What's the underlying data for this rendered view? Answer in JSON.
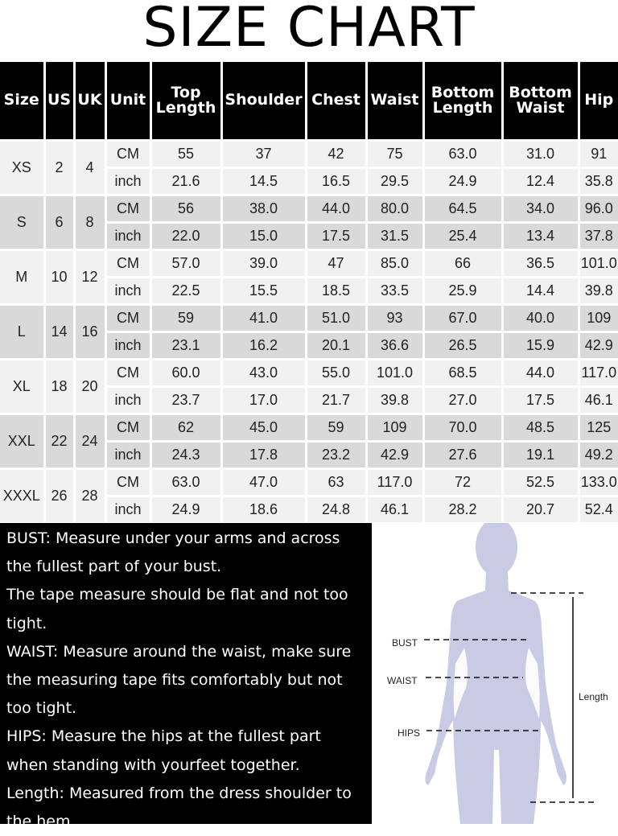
{
  "title": "SIZE CHART",
  "headers": [
    "Size",
    "US",
    "UK",
    "Unit",
    "Top\nLength",
    "Shoulder",
    "Chest",
    "Waist",
    "Bottom\nLength",
    "Bottom\nWaist",
    "Hip"
  ],
  "sizes": [
    {
      "size": "XS",
      "us": "2",
      "uk": "4",
      "cm": [
        "55",
        "37",
        "42",
        "75",
        "63.0",
        "31.0",
        "91"
      ],
      "inch": [
        "21.6",
        "14.5",
        "16.5",
        "29.5",
        "24.9",
        "12.4",
        "35.8"
      ]
    },
    {
      "size": "S",
      "us": "6",
      "uk": "8",
      "cm": [
        "56",
        "38.0",
        "44.0",
        "80.0",
        "64.5",
        "34.0",
        "96.0"
      ],
      "inch": [
        "22.0",
        "15.0",
        "17.5",
        "31.5",
        "25.4",
        "13.4",
        "37.8"
      ]
    },
    {
      "size": "M",
      "us": "10",
      "uk": "12",
      "cm": [
        "57.0",
        "39.0",
        "47",
        "85.0",
        "66",
        "36.5",
        "101.0"
      ],
      "inch": [
        "22.5",
        "15.5",
        "18.5",
        "33.5",
        "25.9",
        "14.4",
        "39.8"
      ]
    },
    {
      "size": "L",
      "us": "14",
      "uk": "16",
      "cm": [
        "59",
        "41.0",
        "51.0",
        "93",
        "67.0",
        "40.0",
        "109"
      ],
      "inch": [
        "23.1",
        "16.2",
        "20.1",
        "36.6",
        "26.5",
        "15.9",
        "42.9"
      ]
    },
    {
      "size": "XL",
      "us": "18",
      "uk": "20",
      "cm": [
        "60.0",
        "43.0",
        "55.0",
        "101.0",
        "68.5",
        "44.0",
        "117.0"
      ],
      "inch": [
        "23.7",
        "17.0",
        "21.7",
        "39.8",
        "27.0",
        "17.5",
        "46.1"
      ]
    },
    {
      "size": "XXL",
      "us": "22",
      "uk": "24",
      "cm": [
        "62",
        "45.0",
        "59",
        "109",
        "70.0",
        "48.5",
        "125"
      ],
      "inch": [
        "24.3",
        "17.8",
        "23.2",
        "42.9",
        "27.6",
        "19.1",
        "49.2"
      ]
    },
    {
      "size": "XXXL",
      "us": "26",
      "uk": "28",
      "cm": [
        "63.0",
        "47.0",
        "63",
        "117.0",
        "72",
        "52.5",
        "133.0"
      ],
      "inch": [
        "24.9",
        "18.6",
        "24.8",
        "46.1",
        "28.2",
        "20.7",
        "52.4"
      ]
    }
  ],
  "unit_labels": {
    "cm": "CM",
    "inch": "inch"
  },
  "notes": [
    "BUST: Measure under your arms and across",
    "the fullest part of your bust.",
    "The tape measure should be flat and not too",
    "tight.",
    "WAIST: Measure around the waist, make sure",
    "the measuring tape fits comfortably but not",
    "too tight.",
    "HIPS: Measure the hips at the fullest part",
    "when standing with yourfeet together.",
    "Length: Measured from the dress shoulder to",
    "the hem."
  ],
  "figure": {
    "bust": "BUST",
    "waist": "WAIST",
    "hips": "HIPS",
    "length": "Length",
    "body_color": "#c9cbe5"
  }
}
